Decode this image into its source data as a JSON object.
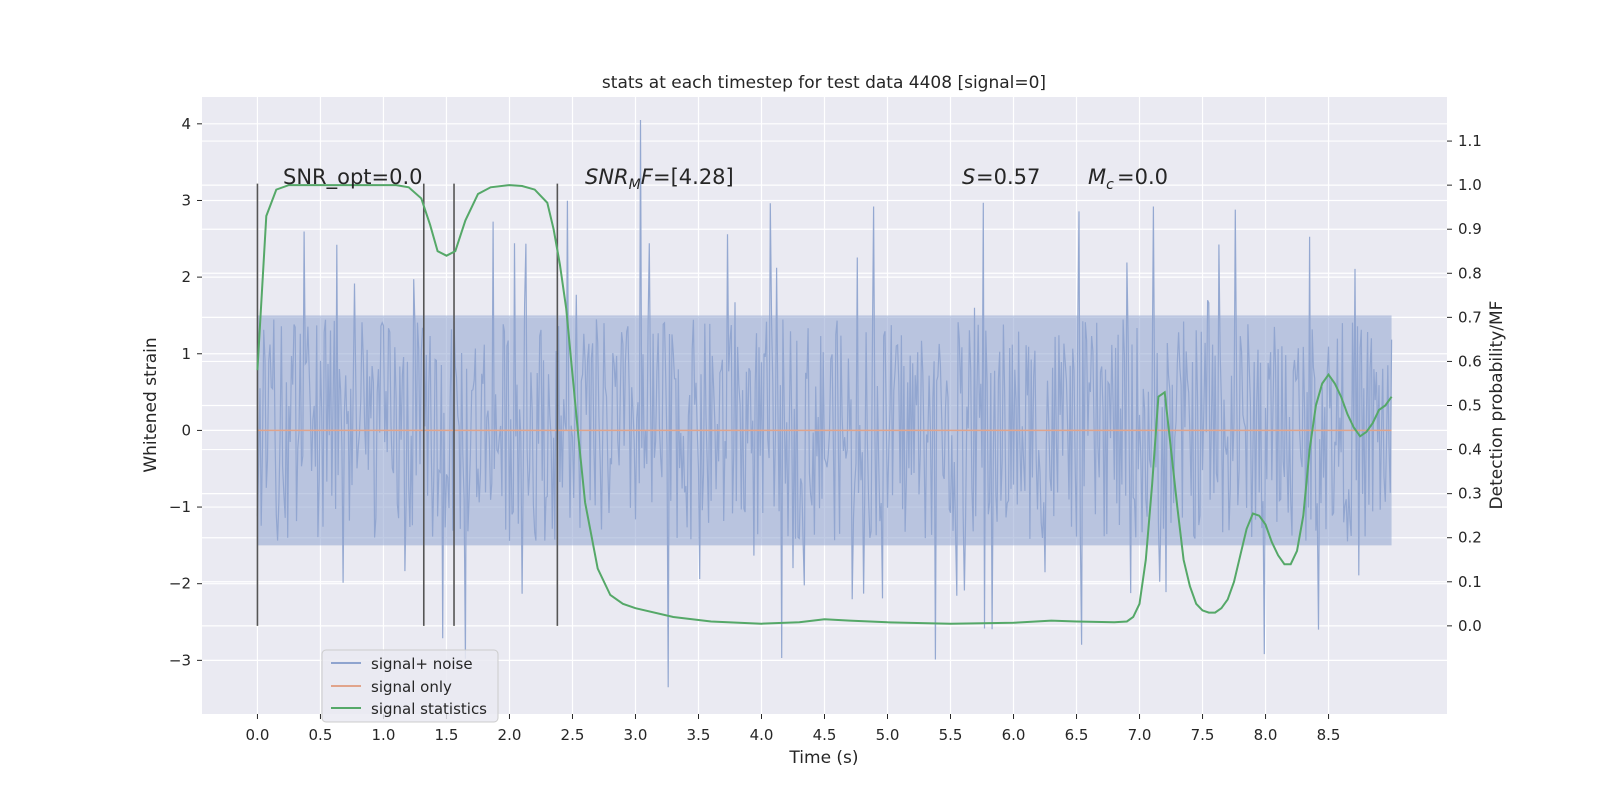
{
  "chart_data": {
    "type": "line",
    "title": "stats at each timestep for test data 4408 [signal=0]",
    "xlabel": "Time (s)",
    "ylabel_left": "Whitened strain",
    "ylabel_right": "Detection probability/MF",
    "xlim": [
      -0.44,
      9.44
    ],
    "ylim_left": [
      -3.7,
      4.35
    ],
    "ylim_right": [
      -0.2,
      1.2
    ],
    "x_ticks": [
      "0.0",
      "0.5",
      "1.0",
      "1.5",
      "2.0",
      "2.5",
      "3.0",
      "3.5",
      "4.0",
      "4.5",
      "5.0",
      "5.5",
      "6.0",
      "6.5",
      "7.0",
      "7.5",
      "8.0",
      "8.5"
    ],
    "y_ticks_left": [
      "4",
      "3",
      "2",
      "1",
      "0",
      "−1",
      "−2",
      "−3"
    ],
    "y_ticks_right": [
      "1.1",
      "1.0",
      "0.9",
      "0.8",
      "0.7",
      "0.6",
      "0.5",
      "0.4",
      "0.3",
      "0.2",
      "0.1",
      "0.0"
    ],
    "grid": true,
    "legend_position": "lower-left",
    "annotations": {
      "snr_opt": "SNR_opt=0.0",
      "snr_mf": "=[4.28]",
      "s": "=0.57",
      "mc": "=0.0"
    },
    "vertical_markers": [
      0.0,
      1.32,
      1.56,
      2.38
    ],
    "series": [
      {
        "name": "signal+ noise",
        "color": "#8fa4cf",
        "axis": "left",
        "x_range": [
          0.0,
          9.0
        ],
        "sample_count": 900,
        "band_low": -1.5,
        "band_high": 1.5,
        "spike_extremes": [
          4.05,
          -3.35
        ]
      },
      {
        "name": "signal only",
        "color": "#e1a48b",
        "axis": "left",
        "x": [
          0.0,
          9.0
        ],
        "y": [
          0.0,
          0.0
        ]
      },
      {
        "name": "signal statistics",
        "color": "#55a868",
        "axis": "right",
        "x": [
          0.0,
          0.07,
          0.15,
          0.25,
          0.4,
          0.6,
          0.8,
          1.0,
          1.1,
          1.2,
          1.3,
          1.37,
          1.43,
          1.5,
          1.57,
          1.65,
          1.75,
          1.85,
          2.0,
          2.1,
          2.2,
          2.3,
          2.35,
          2.4,
          2.45,
          2.5,
          2.55,
          2.6,
          2.7,
          2.8,
          2.9,
          3.0,
          3.3,
          3.6,
          4.0,
          4.3,
          4.5,
          4.7,
          5.0,
          5.5,
          6.0,
          6.3,
          6.5,
          6.8,
          6.9,
          6.95,
          7.0,
          7.05,
          7.1,
          7.15,
          7.2,
          7.25,
          7.3,
          7.35,
          7.4,
          7.45,
          7.5,
          7.55,
          7.6,
          7.65,
          7.7,
          7.75,
          7.8,
          7.85,
          7.9,
          7.95,
          8.0,
          8.05,
          8.1,
          8.15,
          8.2,
          8.25,
          8.3,
          8.35,
          8.4,
          8.45,
          8.5,
          8.55,
          8.6,
          8.65,
          8.7,
          8.75,
          8.8,
          8.85,
          8.9,
          8.95,
          9.0
        ],
        "y": [
          0.58,
          0.93,
          0.99,
          1.0,
          1.0,
          1.0,
          1.0,
          1.0,
          1.0,
          0.995,
          0.97,
          0.91,
          0.85,
          0.84,
          0.85,
          0.92,
          0.98,
          0.995,
          1.0,
          0.998,
          0.99,
          0.96,
          0.9,
          0.82,
          0.72,
          0.57,
          0.42,
          0.28,
          0.13,
          0.07,
          0.05,
          0.04,
          0.02,
          0.01,
          0.005,
          0.008,
          0.015,
          0.012,
          0.008,
          0.005,
          0.007,
          0.012,
          0.01,
          0.008,
          0.01,
          0.02,
          0.05,
          0.15,
          0.32,
          0.52,
          0.53,
          0.4,
          0.27,
          0.15,
          0.09,
          0.05,
          0.035,
          0.03,
          0.03,
          0.04,
          0.06,
          0.1,
          0.16,
          0.22,
          0.255,
          0.25,
          0.23,
          0.19,
          0.16,
          0.14,
          0.14,
          0.17,
          0.25,
          0.4,
          0.5,
          0.55,
          0.57,
          0.55,
          0.52,
          0.48,
          0.45,
          0.43,
          0.44,
          0.46,
          0.49,
          0.5,
          0.52
        ]
      }
    ]
  }
}
